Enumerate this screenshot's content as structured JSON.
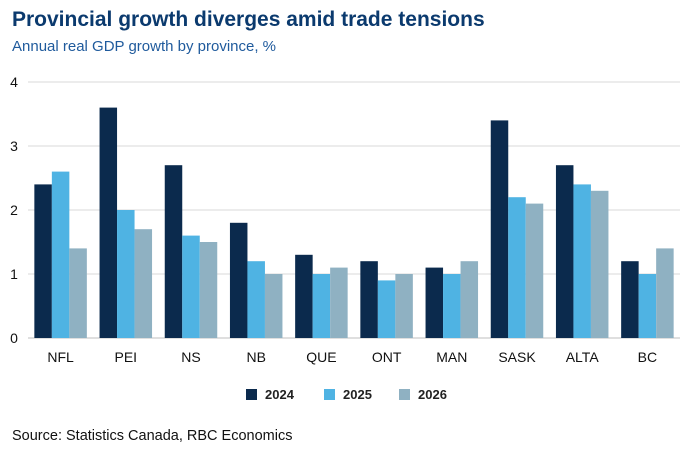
{
  "title": "Provincial growth diverges amid trade tensions",
  "subtitle": "Annual real GDP growth by province, %",
  "source": "Source: Statistics Canada, RBC Economics",
  "chart_data": {
    "type": "bar",
    "title": "Provincial growth diverges amid trade tensions",
    "subtitle": "Annual real GDP growth by province, %",
    "categories": [
      "NFL",
      "PEI",
      "NS",
      "NB",
      "QUE",
      "ONT",
      "MAN",
      "SASK",
      "ALTA",
      "BC"
    ],
    "series": [
      {
        "name": "2024",
        "color": "#0b2a4d",
        "values": [
          2.4,
          3.6,
          2.7,
          1.8,
          1.3,
          1.2,
          1.1,
          3.4,
          2.7,
          1.2
        ]
      },
      {
        "name": "2025",
        "color": "#4fb3e3",
        "values": [
          2.6,
          2.0,
          1.6,
          1.2,
          1.0,
          0.9,
          1.0,
          2.2,
          2.4,
          1.0
        ]
      },
      {
        "name": "2026",
        "color": "#8fb1c2",
        "values": [
          1.4,
          1.7,
          1.5,
          1.0,
          1.1,
          1.0,
          1.2,
          2.1,
          2.3,
          1.4
        ]
      }
    ],
    "ylim": [
      0,
      4
    ],
    "yticks": [
      0,
      1,
      2,
      3,
      4
    ],
    "grid": true,
    "legend": "bottom"
  }
}
